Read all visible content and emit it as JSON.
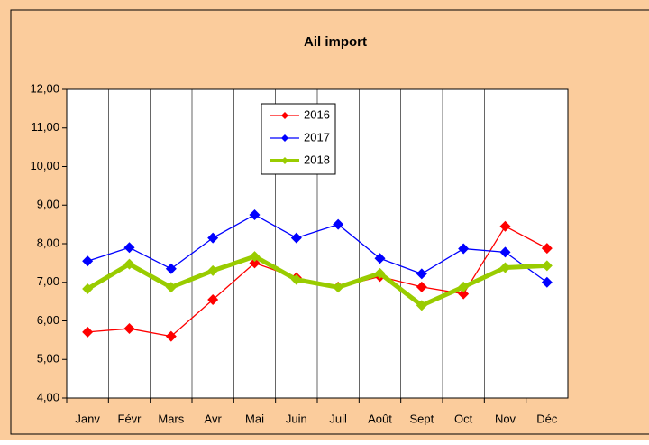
{
  "chart_data": {
    "type": "line",
    "title": "Ail import",
    "categories": [
      "Janv",
      "Févr",
      "Mars",
      "Avr",
      "Mai",
      "Juin",
      "Juil",
      "Août",
      "Sept",
      "Oct",
      "Nov",
      "Déc"
    ],
    "series": [
      {
        "name": "2016",
        "color": "#ff0000",
        "values": [
          5.71,
          5.8,
          5.6,
          6.55,
          7.5,
          7.12,
          6.88,
          7.15,
          6.88,
          6.7,
          8.45,
          7.88
        ]
      },
      {
        "name": "2017",
        "color": "#0000ff",
        "values": [
          7.55,
          7.9,
          7.35,
          8.15,
          8.75,
          8.15,
          8.5,
          7.62,
          7.22,
          7.87,
          7.78,
          7.0
        ]
      },
      {
        "name": "2018",
        "color": "#99cc00",
        "values": [
          6.83,
          7.47,
          6.87,
          7.3,
          7.67,
          7.07,
          6.87,
          7.23,
          6.4,
          6.88,
          7.38,
          7.43
        ]
      }
    ],
    "ylim": [
      4,
      12
    ],
    "yticks": [
      {
        "value": 4,
        "label": "4,00"
      },
      {
        "value": 5,
        "label": "5,00"
      },
      {
        "value": 6,
        "label": "6,00"
      },
      {
        "value": 7,
        "label": "7,00"
      },
      {
        "value": 8,
        "label": "8,00"
      },
      {
        "value": 9,
        "label": "9,00"
      },
      {
        "value": 10,
        "label": "10,00"
      },
      {
        "value": 11,
        "label": "11,00"
      },
      {
        "value": 12,
        "label": "12,00"
      }
    ],
    "legend": "upper-center"
  }
}
